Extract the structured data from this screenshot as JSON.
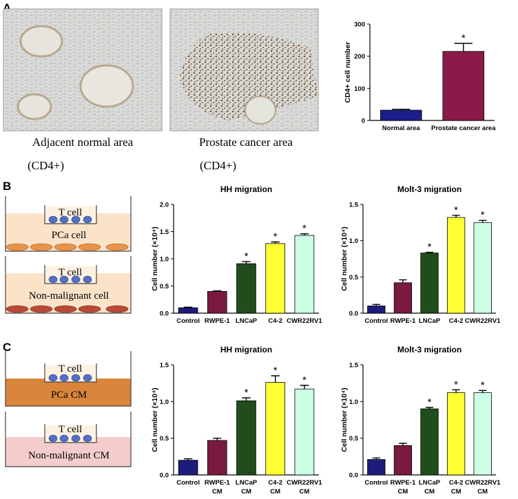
{
  "panels": {
    "a": "A",
    "b": "B",
    "c": "C"
  },
  "captions": {
    "normal": "Adjacent normal area",
    "normal_stain": "(CD4+)",
    "cancer": "Prostate cancer area",
    "cancer_stain": "(CD4+)"
  },
  "diagrams": {
    "b_top": {
      "upper": "T cell",
      "lower": "PCa cell"
    },
    "b_bottom": {
      "upper": "T cell",
      "lower": "Non-malignant cell"
    },
    "c_top": {
      "upper": "T cell",
      "lower": "PCa  CM"
    },
    "c_bottom": {
      "upper": "T cell",
      "lower": "Non-malignant CM"
    }
  },
  "chart_data": [
    {
      "type": "bar",
      "ylabel": "CD4+ cell number",
      "categories": [
        [
          "Normal area"
        ],
        [
          "Prostate cancer area"
        ]
      ],
      "values": [
        32,
        215
      ],
      "errors": [
        3,
        25
      ],
      "markers": [
        null,
        "*"
      ],
      "colors": [
        "#1c1c8a",
        "#8a1a48"
      ],
      "ylim": [
        0,
        300
      ],
      "yticks": [
        0,
        100,
        200,
        300
      ]
    },
    {
      "type": "bar",
      "title": "HH migration",
      "ylabel": "Cell number (×10⁴)",
      "categories": [
        [
          "Control"
        ],
        [
          "RWPE-1"
        ],
        [
          "LNCaP"
        ],
        [
          "C4-2"
        ],
        [
          "CWR22RV1"
        ]
      ],
      "values": [
        0.1,
        0.4,
        0.91,
        1.28,
        1.43
      ],
      "errors": [
        0.01,
        0.01,
        0.04,
        0.03,
        0.03
      ],
      "markers": [
        null,
        null,
        "*",
        "*",
        "*"
      ],
      "colors": [
        "#1c1c7a",
        "#7a1a40",
        "#1f4d1c",
        "#ffff33",
        "#ccffe6"
      ],
      "ylim": [
        0,
        2
      ],
      "yticks": [
        {
          "value": 0,
          "label": "0.0"
        },
        {
          "value": 0.5,
          "label": "0.5"
        },
        {
          "value": 1,
          "label": "1.0"
        },
        {
          "value": 1.5,
          "label": "1.5"
        },
        {
          "value": 2,
          "label": "2.0"
        }
      ]
    },
    {
      "type": "bar",
      "title": "Molt-3 migration",
      "ylabel": "Cell number (×10⁴)",
      "categories": [
        [
          "Control"
        ],
        [
          "RWPE-1"
        ],
        [
          "LNCaP"
        ],
        [
          "C4-2"
        ],
        [
          "CWR22RV1"
        ]
      ],
      "values": [
        0.1,
        0.42,
        0.83,
        1.32,
        1.25
      ],
      "errors": [
        0.02,
        0.04,
        0.01,
        0.03,
        0.03
      ],
      "markers": [
        null,
        null,
        "*",
        "*",
        "*"
      ],
      "colors": [
        "#1c1c7a",
        "#7a1a40",
        "#1f4d1c",
        "#ffff33",
        "#ccffe6"
      ],
      "ylim": [
        0,
        1.5
      ],
      "yticks": [
        {
          "value": 0,
          "label": "0.0"
        },
        {
          "value": 0.5,
          "label": "0.5"
        },
        {
          "value": 1,
          "label": "1.0"
        },
        {
          "value": 1.5,
          "label": "1.5"
        }
      ]
    },
    {
      "type": "bar",
      "title": "HH migration",
      "ylabel": "Cell number (×10⁴)",
      "categories": [
        [
          "Control"
        ],
        [
          "RWPE-1",
          "CM"
        ],
        [
          "LNCaP",
          "CM"
        ],
        [
          "C4-2",
          "CM"
        ],
        [
          "CWR22RV1",
          "CM"
        ]
      ],
      "values": [
        0.2,
        0.47,
        1.01,
        1.26,
        1.17
      ],
      "errors": [
        0.02,
        0.03,
        0.04,
        0.09,
        0.05
      ],
      "markers": [
        null,
        null,
        "*",
        "*",
        "*"
      ],
      "colors": [
        "#1c1c7a",
        "#7a1a40",
        "#1f4d1c",
        "#ffff33",
        "#ccffe6"
      ],
      "ylim": [
        0,
        1.5
      ],
      "yticks": [
        {
          "value": 0,
          "label": "0.0"
        },
        {
          "value": 0.5,
          "label": "0.5"
        },
        {
          "value": 1,
          "label": "1.0"
        },
        {
          "value": 1.5,
          "label": "1.5"
        }
      ]
    },
    {
      "type": "bar",
      "title": "Molt-3 migration",
      "ylabel": "Cell number (×10⁴)",
      "categories": [
        [
          "Control"
        ],
        [
          "RWPE-1",
          "CM"
        ],
        [
          "LNCaP",
          "CM"
        ],
        [
          "C4-2",
          "CM"
        ],
        [
          "CWR22RV1",
          "CM"
        ]
      ],
      "values": [
        0.21,
        0.4,
        0.9,
        1.12,
        1.12
      ],
      "errors": [
        0.02,
        0.03,
        0.02,
        0.04,
        0.03
      ],
      "markers": [
        null,
        null,
        "*",
        "*",
        "*"
      ],
      "colors": [
        "#1c1c7a",
        "#7a1a40",
        "#1f4d1c",
        "#ffff33",
        "#ccffe6"
      ],
      "ylim": [
        0,
        1.5
      ],
      "yticks": [
        {
          "value": 0,
          "label": "0.0"
        },
        {
          "value": 0.5,
          "label": "0.5"
        },
        {
          "value": 1,
          "label": "1.0"
        },
        {
          "value": 1.5,
          "label": "1.5"
        }
      ]
    }
  ]
}
